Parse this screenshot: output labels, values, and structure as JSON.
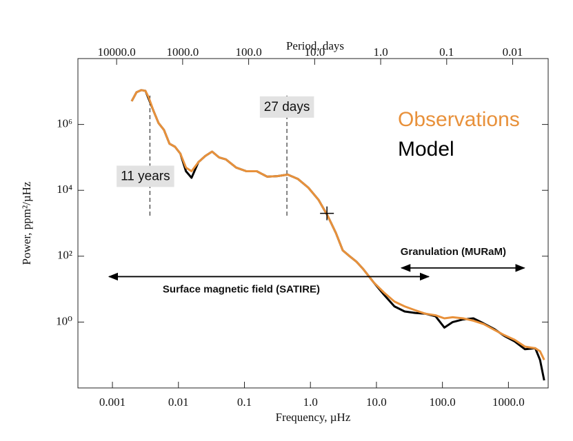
{
  "chart_data": {
    "type": "line",
    "xlabel": "Frequency, µHz",
    "ylabel": "Power, ppm²/µHz",
    "x2label": "Period, days",
    "xscale": "log",
    "yscale": "log",
    "x2scale": "log",
    "xlim": [
      0.0003,
      4000
    ],
    "ylim": [
      0.01,
      100000000
    ],
    "x2lim": [
      38580,
      0.0029
    ],
    "xticks": [
      0.001,
      0.01,
      0.1,
      {
        "value": 1,
        "label": "1.0"
      },
      {
        "value": 10,
        "label": "10.0"
      },
      {
        "value": 100,
        "label": "100.0"
      },
      {
        "value": 1000,
        "label": "1000.0"
      }
    ],
    "yticks": [
      {
        "value": 1,
        "label": "10⁰"
      },
      {
        "value": 100,
        "label": "10²"
      },
      {
        "value": 10000,
        "label": "10⁴"
      },
      {
        "value": 1000000,
        "label": "10⁶"
      }
    ],
    "x2ticks": [
      {
        "value": 10000,
        "label": "10000.0"
      },
      {
        "value": 1000,
        "label": "1000.0"
      },
      {
        "value": 100,
        "label": "100.0"
      },
      {
        "value": 10,
        "label": "10.0"
      },
      {
        "value": 1,
        "label": "1.0"
      },
      0.1,
      0.01
    ],
    "legend": "upper right",
    "x": [
      0.00196,
      0.00232,
      0.00274,
      0.00316,
      0.00356,
      0.00422,
      0.00499,
      0.00604,
      0.00732,
      0.00887,
      0.0107,
      0.013,
      0.0158,
      0.02,
      0.0255,
      0.0324,
      0.0412,
      0.0524,
      0.075,
      0.107,
      0.154,
      0.221,
      0.316,
      0.453,
      0.649,
      0.93,
      1.33,
      1.82,
      2.43,
      3.09,
      3.92,
      4.99,
      6.34,
      9.08,
      13,
      18.7,
      26.7,
      38.3,
      54.9,
      78.7,
      107,
      143,
      205,
      294,
      422,
      604,
      866,
      1241,
      1778,
      2549,
      3013,
      3480
    ],
    "series": [
      {
        "name": "Observations",
        "color": "#e8913b",
        "values": [
          5100000,
          9500000,
          11000000,
          10500000,
          6500000,
          2500000,
          1100000,
          680000,
          260000,
          210000,
          130000,
          49000,
          38000,
          71000,
          110000,
          150000,
          100000,
          87000,
          49000,
          38000,
          38000,
          26000,
          27000,
          30000,
          22000,
          12000,
          5100,
          1700,
          510,
          150,
          100,
          68,
          40,
          16,
          7.9,
          4.2,
          3.0,
          2.3,
          1.8,
          1.6,
          1.3,
          1.4,
          1.3,
          1.1,
          0.87,
          0.59,
          0.4,
          0.29,
          0.18,
          0.16,
          0.13,
          0.071
        ]
      },
      {
        "name": "Model",
        "color": "#000000",
        "values": [
          5100000,
          9500000,
          11000000,
          10500000,
          5900000,
          2500000,
          1100000,
          680000,
          260000,
          210000,
          130000,
          38000,
          24000,
          71000,
          110000,
          150000,
          100000,
          87000,
          49000,
          38000,
          38000,
          26000,
          27000,
          30000,
          22000,
          12000,
          5100,
          1700,
          510,
          150,
          100,
          68,
          40,
          16,
          6.8,
          3.0,
          2.1,
          1.9,
          1.8,
          1.5,
          0.68,
          1.0,
          1.2,
          1.3,
          0.91,
          0.62,
          0.38,
          0.26,
          0.15,
          0.16,
          0.071,
          0.017
        ]
      }
    ],
    "vlines": [
      {
        "x": 0.0037,
        "y": [
          1700,
          7500000
        ]
      },
      {
        "x": 0.44,
        "y": [
          1700,
          7500000
        ]
      }
    ],
    "annotations": [
      {
        "text": "11 years",
        "x": 0.00316,
        "y": 26000
      },
      {
        "text": "27 days",
        "x": 0.44,
        "y": 3300000
      }
    ],
    "arrows": [
      {
        "text": "Surface magnetic field (SATIRE)",
        "x": [
          0.00089,
          62
        ],
        "y": 24,
        "label_side": "below"
      },
      {
        "text": "Granulation (MURaM)",
        "x": [
          24,
          1740
        ],
        "y": 44,
        "label_side": "above"
      }
    ],
    "marker": {
      "x": 1.78,
      "y": 2000
    }
  }
}
